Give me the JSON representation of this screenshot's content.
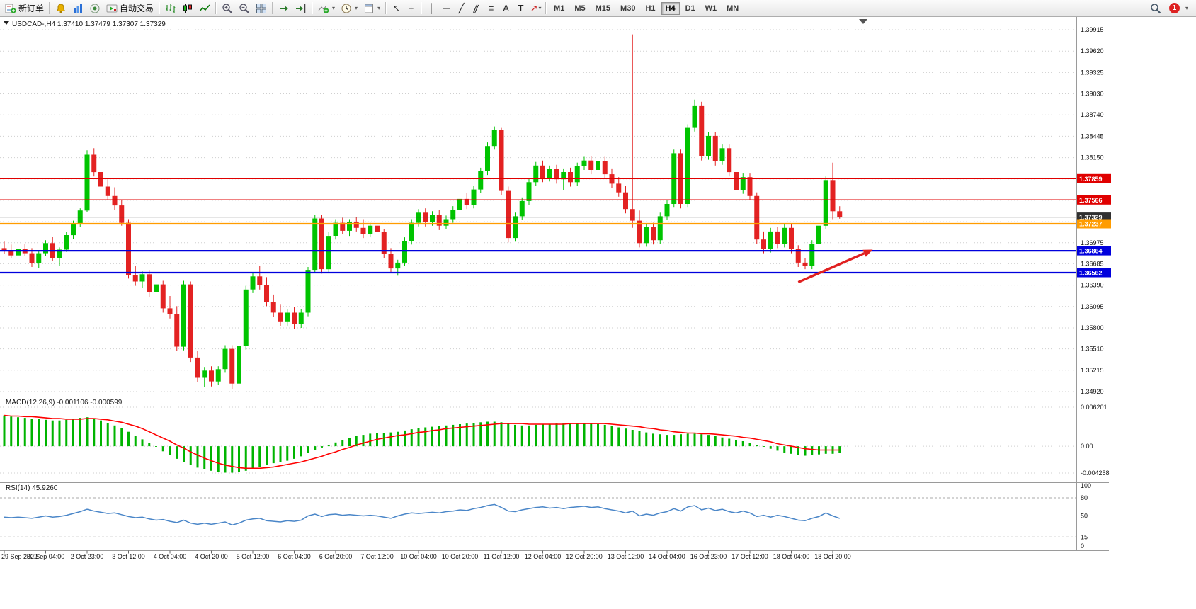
{
  "toolbar": {
    "new_order_label": "新订单",
    "auto_trading_label": "自动交易",
    "caret_glyph": "▾",
    "timeframes": [
      "M1",
      "M5",
      "M15",
      "M30",
      "H1",
      "H4",
      "D1",
      "W1",
      "MN"
    ],
    "active_timeframe": "H4",
    "notification_count": "1",
    "pointer_tools": [
      {
        "name": "cursor-tool",
        "glyph": "↖"
      },
      {
        "name": "crosshair-tool",
        "glyph": "+"
      }
    ],
    "draw_tools": [
      {
        "name": "vertical-line-tool",
        "glyph": "│"
      },
      {
        "name": "horizontal-line-tool",
        "glyph": "─"
      },
      {
        "name": "trendline-tool",
        "glyph": "╱"
      },
      {
        "name": "equidistant-channel-tool",
        "glyph": "∥",
        "rotate": true
      },
      {
        "name": "fibonacci-retracement-tool",
        "glyph": "≡"
      },
      {
        "name": "text-tool",
        "glyph": "A"
      },
      {
        "name": "text-label-tool",
        "glyph": "T"
      },
      {
        "name": "arrows-tool",
        "glyph": "↗",
        "color": "#cc2222",
        "caret": true
      }
    ]
  },
  "chart": {
    "title": "USDCAD-,H4",
    "ohlc_readout": "1.37410 1.37479 1.37307 1.37329",
    "macd_label": "MACD(12,26,9) -0.001106 -0.000599",
    "rsi_label": "RSI(14) 45.9260"
  },
  "colors": {
    "bull": "#00c400",
    "bear": "#e32222",
    "grid": "#cfcfcf",
    "macd_histogram": "#00b400",
    "macd_signal": "#ff0000",
    "rsi_line": "#4a86c8",
    "resistance_line": "#e00000",
    "pivot_line": "#ff9c00",
    "support_line": "#0000dd",
    "current_price_line": "#303030",
    "annotation_arrow": "#e02020"
  },
  "chart_data": {
    "type": "candlestick",
    "symbol": "USDCAD-",
    "period": "H4",
    "bars_per_label": 6,
    "price_axis": {
      "min": 1.3492,
      "max": 1.39915,
      "labels": [
        "1.39915",
        "1.39620",
        "1.39325",
        "1.39030",
        "1.38740",
        "1.38445",
        "1.38150",
        "1.36975",
        "1.36685",
        "1.36390",
        "1.36095",
        "1.35800",
        "1.35510",
        "1.35215",
        "1.34920"
      ],
      "grid": [
        1.39915,
        1.3962,
        1.39325,
        1.3903,
        1.3874,
        1.38445,
        1.3815,
        1.37855,
        1.3756,
        1.37265,
        1.36975,
        1.36685,
        1.3639,
        1.36095,
        1.358,
        1.3551,
        1.35215,
        1.3492
      ]
    },
    "time_labels": [
      "29 Sep 2022",
      "30 Sep 04:00",
      "2 Oct 23:00",
      "3 Oct 12:00",
      "4 Oct 04:00",
      "4 Oct 20:00",
      "5 Oct 12:00",
      "6 Oct 04:00",
      "6 Oct 20:00",
      "7 Oct 12:00",
      "10 Oct 04:00",
      "10 Oct 20:00",
      "11 Oct 12:00",
      "12 Oct 04:00",
      "12 Oct 20:00",
      "13 Oct 12:00",
      "14 Oct 04:00",
      "16 Oct 23:00",
      "17 Oct 12:00",
      "18 Oct 04:00",
      "18 Oct 20:00"
    ],
    "candles": [
      [
        1.369,
        1.3699,
        1.3682,
        1.3687
      ],
      [
        1.3687,
        1.3695,
        1.3676,
        1.368
      ],
      [
        1.368,
        1.3691,
        1.3672,
        1.3689
      ],
      [
        1.3689,
        1.3696,
        1.3679,
        1.3683
      ],
      [
        1.3683,
        1.369,
        1.3664,
        1.3669
      ],
      [
        1.3669,
        1.3686,
        1.3663,
        1.3683
      ],
      [
        1.3683,
        1.3701,
        1.3679,
        1.3697
      ],
      [
        1.3697,
        1.3706,
        1.3672,
        1.3676
      ],
      [
        1.3676,
        1.3691,
        1.3666,
        1.3688
      ],
      [
        1.3688,
        1.3712,
        1.3685,
        1.3708
      ],
      [
        1.3708,
        1.3728,
        1.3703,
        1.3724
      ],
      [
        1.3724,
        1.3745,
        1.3719,
        1.3742
      ],
      [
        1.3742,
        1.3825,
        1.374,
        1.3819
      ],
      [
        1.3819,
        1.3828,
        1.3789,
        1.3795
      ],
      [
        1.3795,
        1.3806,
        1.3769,
        1.3775
      ],
      [
        1.3775,
        1.3785,
        1.3756,
        1.3762
      ],
      [
        1.3762,
        1.3774,
        1.3743,
        1.3749
      ],
      [
        1.3749,
        1.3756,
        1.3721,
        1.3725
      ],
      [
        1.3725,
        1.373,
        1.3648,
        1.3653
      ],
      [
        1.3653,
        1.3665,
        1.3638,
        1.3644
      ],
      [
        1.3644,
        1.3658,
        1.3635,
        1.3654
      ],
      [
        1.3654,
        1.366,
        1.3623,
        1.3629
      ],
      [
        1.3629,
        1.3644,
        1.3615,
        1.364
      ],
      [
        1.364,
        1.3645,
        1.3601,
        1.3607
      ],
      [
        1.3607,
        1.3624,
        1.3593,
        1.3599
      ],
      [
        1.3599,
        1.361,
        1.3548,
        1.3554
      ],
      [
        1.3554,
        1.3645,
        1.3549,
        1.364
      ],
      [
        1.364,
        1.3644,
        1.3533,
        1.3539
      ],
      [
        1.3539,
        1.3548,
        1.3505,
        1.3511
      ],
      [
        1.3511,
        1.3526,
        1.3498,
        1.3521
      ],
      [
        1.3521,
        1.3527,
        1.3499,
        1.3506
      ],
      [
        1.3506,
        1.3527,
        1.3501,
        1.3523
      ],
      [
        1.3523,
        1.3556,
        1.3518,
        1.3551
      ],
      [
        1.3551,
        1.3556,
        1.3495,
        1.3503
      ],
      [
        1.3503,
        1.356,
        1.35,
        1.3555
      ],
      [
        1.3555,
        1.3638,
        1.355,
        1.3633
      ],
      [
        1.3633,
        1.3656,
        1.3628,
        1.3651
      ],
      [
        1.3651,
        1.3665,
        1.3633,
        1.3639
      ],
      [
        1.3639,
        1.365,
        1.361,
        1.3616
      ],
      [
        1.3616,
        1.3626,
        1.3595,
        1.3601
      ],
      [
        1.3601,
        1.3613,
        1.3582,
        1.3588
      ],
      [
        1.3588,
        1.3606,
        1.3583,
        1.3601
      ],
      [
        1.3601,
        1.3609,
        1.3579,
        1.3585
      ],
      [
        1.3585,
        1.3606,
        1.358,
        1.3601
      ],
      [
        1.3601,
        1.3664,
        1.3596,
        1.366
      ],
      [
        1.366,
        1.3736,
        1.3656,
        1.3731
      ],
      [
        1.3731,
        1.3736,
        1.3655,
        1.3661
      ],
      [
        1.3661,
        1.3712,
        1.3656,
        1.3707
      ],
      [
        1.3707,
        1.373,
        1.3702,
        1.3725
      ],
      [
        1.3725,
        1.3732,
        1.3709,
        1.3714
      ],
      [
        1.3714,
        1.373,
        1.3707,
        1.3726
      ],
      [
        1.3726,
        1.3733,
        1.3713,
        1.3718
      ],
      [
        1.3718,
        1.373,
        1.3704,
        1.371
      ],
      [
        1.371,
        1.3725,
        1.3705,
        1.3721
      ],
      [
        1.3721,
        1.3729,
        1.3706,
        1.3712
      ],
      [
        1.3712,
        1.3716,
        1.3676,
        1.3682
      ],
      [
        1.3682,
        1.369,
        1.3656,
        1.3662
      ],
      [
        1.3662,
        1.3674,
        1.3652,
        1.367
      ],
      [
        1.367,
        1.3705,
        1.3665,
        1.37
      ],
      [
        1.37,
        1.373,
        1.3695,
        1.3725
      ],
      [
        1.3725,
        1.3744,
        1.372,
        1.3739
      ],
      [
        1.3739,
        1.3745,
        1.372,
        1.3726
      ],
      [
        1.3726,
        1.3741,
        1.3721,
        1.3736
      ],
      [
        1.3736,
        1.3743,
        1.3715,
        1.3721
      ],
      [
        1.3721,
        1.3735,
        1.3716,
        1.373
      ],
      [
        1.373,
        1.3748,
        1.3725,
        1.3743
      ],
      [
        1.3743,
        1.3763,
        1.3738,
        1.3758
      ],
      [
        1.3758,
        1.3766,
        1.3744,
        1.375
      ],
      [
        1.375,
        1.3776,
        1.3745,
        1.3771
      ],
      [
        1.3771,
        1.3801,
        1.3766,
        1.3796
      ],
      [
        1.3796,
        1.3836,
        1.3791,
        1.3831
      ],
      [
        1.3831,
        1.3858,
        1.3826,
        1.3853
      ],
      [
        1.3853,
        1.3856,
        1.3763,
        1.3769
      ],
      [
        1.3769,
        1.3775,
        1.3698,
        1.3704
      ],
      [
        1.3704,
        1.3739,
        1.3699,
        1.3734
      ],
      [
        1.3734,
        1.376,
        1.3729,
        1.3755
      ],
      [
        1.3755,
        1.3786,
        1.375,
        1.3781
      ],
      [
        1.3781,
        1.3809,
        1.3776,
        1.3804
      ],
      [
        1.3804,
        1.3811,
        1.3781,
        1.3787
      ],
      [
        1.3787,
        1.3804,
        1.3782,
        1.3799
      ],
      [
        1.3799,
        1.3805,
        1.3779,
        1.3785
      ],
      [
        1.3785,
        1.38,
        1.377,
        1.3795
      ],
      [
        1.3795,
        1.3801,
        1.3775,
        1.3781
      ],
      [
        1.3781,
        1.3808,
        1.3776,
        1.3803
      ],
      [
        1.3803,
        1.3816,
        1.3798,
        1.3811
      ],
      [
        1.3811,
        1.3817,
        1.3792,
        1.3798
      ],
      [
        1.3798,
        1.3815,
        1.3793,
        1.381
      ],
      [
        1.381,
        1.3816,
        1.3786,
        1.3792
      ],
      [
        1.3792,
        1.38,
        1.3773,
        1.3779
      ],
      [
        1.3779,
        1.3788,
        1.3761,
        1.3767
      ],
      [
        1.3767,
        1.3776,
        1.3738,
        1.3744
      ],
      [
        1.3744,
        1.3985,
        1.3718,
        1.3728
      ],
      [
        1.3728,
        1.3742,
        1.3691,
        1.3697
      ],
      [
        1.3697,
        1.3724,
        1.3692,
        1.3719
      ],
      [
        1.3719,
        1.3725,
        1.3695,
        1.3701
      ],
      [
        1.3701,
        1.3739,
        1.3696,
        1.3734
      ],
      [
        1.3734,
        1.3756,
        1.3729,
        1.3751
      ],
      [
        1.3751,
        1.3826,
        1.3746,
        1.3821
      ],
      [
        1.3821,
        1.3826,
        1.3745,
        1.3751
      ],
      [
        1.3751,
        1.3861,
        1.3746,
        1.3856
      ],
      [
        1.3856,
        1.3895,
        1.3851,
        1.3887
      ],
      [
        1.3887,
        1.3892,
        1.3811,
        1.3817
      ],
      [
        1.3817,
        1.385,
        1.3812,
        1.3845
      ],
      [
        1.3845,
        1.385,
        1.3804,
        1.381
      ],
      [
        1.381,
        1.3833,
        1.3805,
        1.3828
      ],
      [
        1.3828,
        1.3833,
        1.3789,
        1.3795
      ],
      [
        1.3795,
        1.38,
        1.3764,
        1.377
      ],
      [
        1.377,
        1.3793,
        1.3765,
        1.3788
      ],
      [
        1.3788,
        1.3793,
        1.3756,
        1.3762
      ],
      [
        1.3762,
        1.3767,
        1.3696,
        1.3702
      ],
      [
        1.3702,
        1.3713,
        1.3683,
        1.3689
      ],
      [
        1.3689,
        1.3718,
        1.3684,
        1.3713
      ],
      [
        1.3713,
        1.3719,
        1.369,
        1.3696
      ],
      [
        1.3696,
        1.3723,
        1.3691,
        1.3718
      ],
      [
        1.3718,
        1.3723,
        1.3683,
        1.3689
      ],
      [
        1.3689,
        1.3694,
        1.3664,
        1.367
      ],
      [
        1.367,
        1.3676,
        1.3661,
        1.3666
      ],
      [
        1.3666,
        1.3701,
        1.3661,
        1.3696
      ],
      [
        1.3696,
        1.3726,
        1.3691,
        1.3721
      ],
      [
        1.3721,
        1.3789,
        1.3716,
        1.3784
      ],
      [
        1.3784,
        1.3808,
        1.373,
        1.3741
      ],
      [
        1.3741,
        1.37479,
        1.37307,
        1.37329
      ]
    ],
    "hlines": [
      {
        "price": 1.37859,
        "label": "1.37859",
        "role": "resistance"
      },
      {
        "price": 1.37566,
        "label": "1.37566",
        "role": "resistance"
      },
      {
        "price": 1.37329,
        "label": "1.37329",
        "role": "current"
      },
      {
        "price": 1.37237,
        "label": "1.37237",
        "role": "pivot"
      },
      {
        "price": 1.36864,
        "label": "1.36864",
        "role": "support"
      },
      {
        "price": 1.36562,
        "label": "1.36562",
        "role": "support"
      }
    ],
    "annotation_arrow": {
      "from_bar": 115,
      "from_price": 1.3643,
      "to_bar": 125.8,
      "to_price": 1.3688
    },
    "macd": {
      "params": "12,26,9",
      "value": -0.001106,
      "signal_value": -0.000599,
      "scale_labels": [
        "0.006201",
        "0.00",
        "-0.004258"
      ],
      "scale_values": [
        0.006201,
        0,
        -0.004258
      ],
      "histogram": [
        0.0049,
        0.0047,
        0.0046,
        0.0045,
        0.0044,
        0.0043,
        0.0042,
        0.0041,
        0.0041,
        0.0042,
        0.0043,
        0.0045,
        0.0046,
        0.0044,
        0.0041,
        0.0037,
        0.0033,
        0.0029,
        0.0023,
        0.0017,
        0.0011,
        0.0005,
        -0.0001,
        -0.0008,
        -0.0014,
        -0.002,
        -0.0025,
        -0.003,
        -0.0034,
        -0.0037,
        -0.0039,
        -0.0041,
        -0.0042,
        -0.0042,
        -0.0041,
        -0.0039,
        -0.0036,
        -0.0033,
        -0.003,
        -0.0027,
        -0.0025,
        -0.0023,
        -0.002,
        -0.0016,
        -0.0011,
        -0.0006,
        -0.0002,
        0.0002,
        0.0006,
        0.001,
        0.0013,
        0.0016,
        0.0018,
        0.002,
        0.0021,
        0.0021,
        0.0022,
        0.0023,
        0.0025,
        0.0027,
        0.0029,
        0.003,
        0.0031,
        0.0032,
        0.0033,
        0.0034,
        0.0035,
        0.0036,
        0.0037,
        0.0038,
        0.0039,
        0.0039,
        0.0038,
        0.0036,
        0.0034,
        0.0033,
        0.0033,
        0.0034,
        0.0035,
        0.0035,
        0.0036,
        0.0036,
        0.0037,
        0.0037,
        0.0037,
        0.0036,
        0.0035,
        0.0034,
        0.0032,
        0.003,
        0.0028,
        0.0026,
        0.0024,
        0.0022,
        0.002,
        0.0019,
        0.0018,
        0.0018,
        0.0019,
        0.002,
        0.002,
        0.0019,
        0.0018,
        0.0016,
        0.0014,
        0.0012,
        0.001,
        0.0008,
        0.0005,
        0.0002,
        -0.0001,
        -0.0004,
        -0.0007,
        -0.001,
        -0.0012,
        -0.0014,
        -0.0015,
        -0.0014,
        -0.0013,
        -0.0012,
        -0.0012,
        -0.00111
      ],
      "signal": [
        0.0049,
        0.0048,
        0.0048,
        0.0047,
        0.0047,
        0.0046,
        0.0045,
        0.0044,
        0.0044,
        0.0043,
        0.0043,
        0.0043,
        0.0044,
        0.0044,
        0.0043,
        0.0042,
        0.004,
        0.0038,
        0.0035,
        0.0032,
        0.0028,
        0.0023,
        0.0018,
        0.0013,
        0.0008,
        0.0002,
        -0.0003,
        -0.0009,
        -0.0014,
        -0.0019,
        -0.0023,
        -0.0027,
        -0.003,
        -0.0032,
        -0.0034,
        -0.0035,
        -0.0035,
        -0.0035,
        -0.0034,
        -0.0033,
        -0.0031,
        -0.0029,
        -0.0027,
        -0.0025,
        -0.0022,
        -0.0019,
        -0.0016,
        -0.0012,
        -0.0009,
        -0.0005,
        -0.0002,
        0.0002,
        0.0005,
        0.0008,
        0.0011,
        0.0013,
        0.0015,
        0.0017,
        0.0018,
        0.002,
        0.0022,
        0.0023,
        0.0025,
        0.0026,
        0.0028,
        0.0029,
        0.003,
        0.0031,
        0.0032,
        0.0033,
        0.0034,
        0.0035,
        0.0036,
        0.0036,
        0.0036,
        0.0036,
        0.0035,
        0.0035,
        0.0035,
        0.0035,
        0.0035,
        0.0035,
        0.0036,
        0.0036,
        0.0036,
        0.0036,
        0.0036,
        0.0036,
        0.0035,
        0.0034,
        0.0033,
        0.0032,
        0.0031,
        0.0029,
        0.0028,
        0.0026,
        0.0025,
        0.0023,
        0.0022,
        0.0021,
        0.0021,
        0.002,
        0.002,
        0.0019,
        0.0018,
        0.0017,
        0.0016,
        0.0014,
        0.0013,
        0.0011,
        0.0009,
        0.0007,
        0.0004,
        0.0002,
        0.0,
        -0.0002,
        -0.0004,
        -0.0005,
        -0.0006,
        -0.0006,
        -0.0006,
        -0.000599
      ]
    },
    "rsi": {
      "period": 14,
      "value": 45.926,
      "levels": [
        {
          "label": "100",
          "value": 100,
          "dashed": false
        },
        {
          "label": "80",
          "value": 80,
          "dashed": true
        },
        {
          "label": "50",
          "value": 50,
          "dashed": true
        },
        {
          "label": "15",
          "value": 15,
          "dashed": true
        },
        {
          "label": "0",
          "value": 0,
          "dashed": false
        }
      ],
      "values": [
        48,
        47,
        48,
        47,
        46,
        48,
        50,
        48,
        49,
        51,
        54,
        57,
        61,
        58,
        56,
        54,
        55,
        52,
        49,
        47,
        48,
        45,
        43,
        44,
        41,
        39,
        43,
        38,
        36,
        38,
        36,
        38,
        40,
        35,
        38,
        43,
        45,
        46,
        42,
        41,
        40,
        42,
        41,
        43,
        50,
        53,
        49,
        52,
        53,
        51,
        52,
        51,
        50,
        51,
        50,
        48,
        46,
        50,
        53,
        55,
        54,
        55,
        56,
        55,
        57,
        58,
        60,
        59,
        62,
        64,
        67,
        69,
        64,
        58,
        57,
        60,
        62,
        64,
        65,
        63,
        64,
        62,
        64,
        65,
        66,
        64,
        65,
        62,
        60,
        58,
        55,
        58,
        50,
        53,
        51,
        55,
        57,
        62,
        58,
        65,
        67,
        60,
        63,
        59,
        61,
        57,
        55,
        58,
        55,
        49,
        51,
        48,
        51,
        49,
        46,
        43,
        42,
        46,
        49,
        55,
        50,
        45.9
      ]
    }
  }
}
